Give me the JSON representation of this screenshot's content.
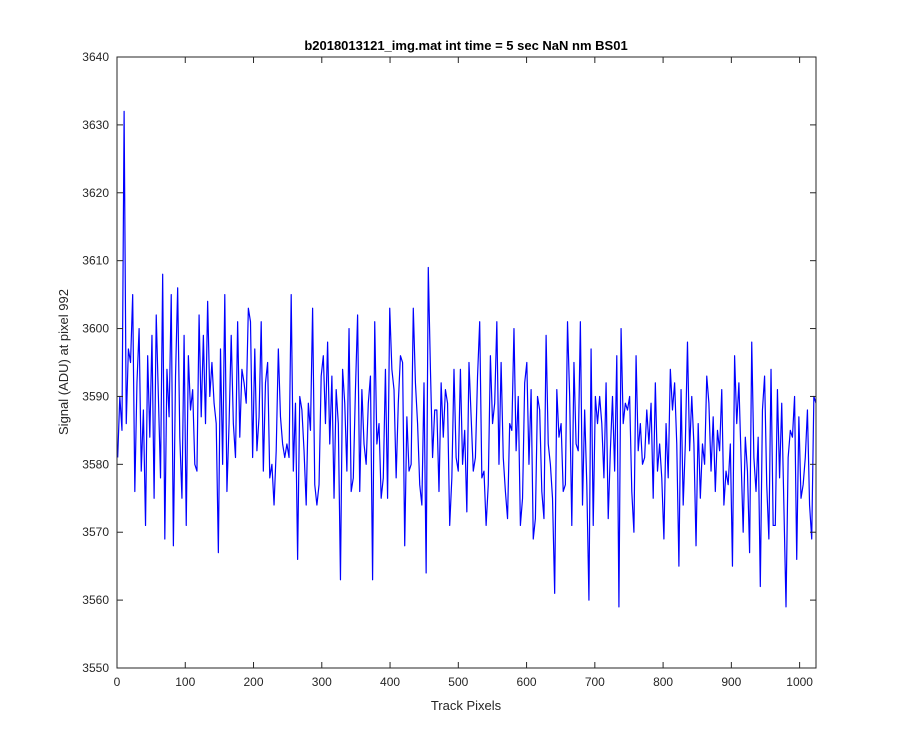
{
  "chart_data": {
    "type": "line",
    "title": "b2018013121_img.mat int time = 5 sec  NaN nm BS01",
    "xlabel": "Track Pixels",
    "ylabel": "Signal (ADU) at pixel 992",
    "xlim": [
      0,
      1024
    ],
    "ylim": [
      3550,
      3640
    ],
    "xticks": [
      0,
      100,
      200,
      300,
      400,
      500,
      600,
      700,
      800,
      900,
      1000
    ],
    "yticks": [
      3550,
      3560,
      3570,
      3580,
      3590,
      3600,
      3610,
      3620,
      3630,
      3640
    ],
    "grid": false,
    "line_color": "#0000ff",
    "x_start": 1,
    "x_end": 1024,
    "series": [
      {
        "values": [
          3581,
          3590,
          3585,
          3632,
          3586,
          3597,
          3595,
          3605,
          3576,
          3592,
          3600,
          3579,
          3588,
          3571,
          3596,
          3584,
          3599,
          3575,
          3602,
          3590,
          3578,
          3608,
          3569,
          3594,
          3587,
          3605,
          3568,
          3593,
          3606,
          3584,
          3575,
          3599,
          3571,
          3596,
          3588,
          3591,
          3580,
          3579,
          3602,
          3587,
          3599,
          3586,
          3604,
          3590,
          3595,
          3589,
          3586,
          3567,
          3597,
          3580,
          3605,
          3576,
          3586,
          3599,
          3586,
          3581,
          3601,
          3584,
          3594,
          3592,
          3589,
          3603,
          3601,
          3581,
          3597,
          3582,
          3587,
          3601,
          3579,
          3592,
          3595,
          3578,
          3580,
          3574,
          3582,
          3597,
          3587,
          3583,
          3581,
          3583,
          3581,
          3605,
          3579,
          3589,
          3566,
          3590,
          3588,
          3582,
          3574,
          3589,
          3585,
          3603,
          3577,
          3574,
          3577,
          3593,
          3596,
          3586,
          3598,
          3583,
          3593,
          3575,
          3591,
          3586,
          3563,
          3594,
          3589,
          3579,
          3600,
          3576,
          3578,
          3591,
          3602,
          3576,
          3591,
          3583,
          3580,
          3589,
          3593,
          3563,
          3601,
          3583,
          3586,
          3575,
          3578,
          3594,
          3575,
          3603,
          3594,
          3591,
          3578,
          3589,
          3596,
          3595,
          3568,
          3587,
          3579,
          3580,
          3603,
          3592,
          3586,
          3577,
          3574,
          3592,
          3564,
          3609,
          3594,
          3581,
          3588,
          3588,
          3576,
          3592,
          3584,
          3591,
          3589,
          3571,
          3578,
          3594,
          3581,
          3579,
          3594,
          3580,
          3585,
          3573,
          3595,
          3587,
          3579,
          3581,
          3593,
          3601,
          3578,
          3579,
          3571,
          3577,
          3596,
          3586,
          3589,
          3601,
          3580,
          3595,
          3581,
          3576,
          3572,
          3586,
          3585,
          3600,
          3582,
          3590,
          3571,
          3575,
          3592,
          3595,
          3580,
          3591,
          3569,
          3572,
          3590,
          3588,
          3576,
          3572,
          3599,
          3583,
          3580,
          3575,
          3561,
          3591,
          3584,
          3586,
          3576,
          3577,
          3601,
          3590,
          3571,
          3595,
          3583,
          3582,
          3601,
          3574,
          3588,
          3577,
          3560,
          3597,
          3571,
          3590,
          3586,
          3590,
          3586,
          3578,
          3592,
          3572,
          3582,
          3590,
          3579,
          3596,
          3559,
          3600,
          3586,
          3589,
          3588,
          3590,
          3576,
          3570,
          3596,
          3582,
          3586,
          3580,
          3581,
          3588,
          3583,
          3589,
          3575,
          3592,
          3579,
          3583,
          3578,
          3569,
          3586,
          3578,
          3594,
          3588,
          3592,
          3583,
          3565,
          3591,
          3574,
          3583,
          3598,
          3582,
          3590,
          3583,
          3568,
          3586,
          3575,
          3583,
          3580,
          3593,
          3589,
          3579,
          3587,
          3576,
          3585,
          3582,
          3591,
          3574,
          3579,
          3577,
          3583,
          3565,
          3596,
          3586,
          3592,
          3581,
          3570,
          3584,
          3579,
          3567,
          3598,
          3581,
          3576,
          3584,
          3562,
          3588,
          3593,
          3577,
          3569,
          3594,
          3571,
          3571,
          3591,
          3578,
          3589,
          3574,
          3559,
          3581,
          3585,
          3584,
          3590,
          3566,
          3587,
          3575,
          3577,
          3581,
          3588,
          3574,
          3569,
          3590,
          3589
        ]
      }
    ]
  }
}
